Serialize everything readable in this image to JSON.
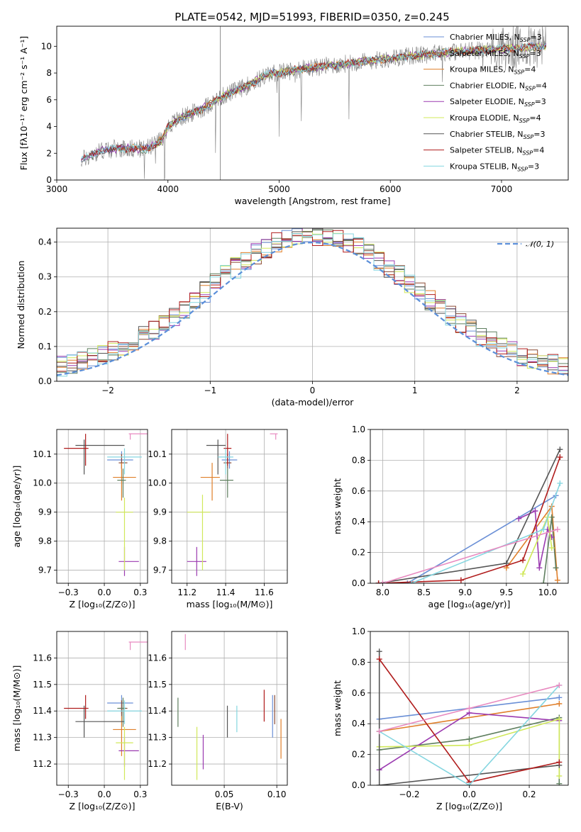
{
  "title": "PLATE=0542, MJD=51993, FIBERID=0350, z=0.245",
  "models": [
    {
      "label": "Chabrier MILES, N",
      "nssp": "=3",
      "color": "#6a8fd6"
    },
    {
      "label": "Salpeter MILES, N",
      "nssp": "=3",
      "color": "#8a4a34"
    },
    {
      "label": "Kroupa MILES, N",
      "nssp": "=4",
      "color": "#e07f2a"
    },
    {
      "label": "Chabrier ELODIE, N",
      "nssp": "=4",
      "color": "#5f7f5f"
    },
    {
      "label": "Salpeter ELODIE, N",
      "nssp": "=3",
      "color": "#9b3ab0"
    },
    {
      "label": "Kroupa ELODIE, N",
      "nssp": "=4",
      "color": "#d0e85a"
    },
    {
      "label": "Chabrier STELIB, N",
      "nssp": "=3",
      "color": "#555555"
    },
    {
      "label": "Salpeter STELIB, N",
      "nssp": "=4",
      "color": "#b01c1c"
    },
    {
      "label": "Kroupa STELIB, N",
      "nssp": "=3",
      "color": "#85d6e0"
    }
  ],
  "extra_color": "#e88ac0",
  "chart_data": [
    {
      "id": "spectrum",
      "type": "line",
      "xlabel": "wavelength [Angstrom, rest frame]",
      "ylabel": "Flux [fλ10⁻¹⁷ erg cm⁻² s⁻¹ A⁻¹]",
      "xlim": [
        3000,
        7600
      ],
      "ylim": [
        0,
        11.5
      ],
      "xticks": [
        3000,
        4000,
        5000,
        6000,
        7000
      ],
      "yticks": [
        0,
        2,
        4,
        6,
        8,
        10
      ],
      "continuum": {
        "x": [
          3220,
          3400,
          3600,
          3800,
          3950,
          4000,
          4100,
          4300,
          4500,
          4700,
          4900,
          5200,
          5500,
          5800,
          6200,
          6600,
          7000,
          7400
        ],
        "y": [
          1.5,
          2.2,
          2.4,
          2.3,
          3.0,
          4.0,
          4.6,
          5.3,
          6.3,
          7.0,
          7.9,
          8.3,
          8.6,
          8.9,
          9.3,
          9.6,
          9.8,
          10.0
        ]
      }
    },
    {
      "id": "residuals",
      "type": "histogram",
      "xlabel": "(data-model)/error",
      "ylabel": "Normed distribution",
      "xlim": [
        -2.5,
        2.5
      ],
      "ylim": [
        0,
        0.44
      ],
      "xticks": [
        -2,
        -1,
        0,
        1,
        2
      ],
      "yticks": [
        0.0,
        0.1,
        0.2,
        0.3,
        0.4
      ],
      "reference_label": "𝒩(0, 1)",
      "bin_width": 0.1
    },
    {
      "id": "age_vs_Z",
      "type": "errorbar",
      "xlabel": "Z [log₁₀(Z/Z⊙)]",
      "ylabel": "age  [log₁₀(age/yr)]",
      "xlim": [
        -0.33,
        0.3
      ],
      "ylim": [
        9.655,
        10.185
      ],
      "xticks": [
        -0.25,
        0.0,
        0.25
      ],
      "yticks": [
        9.7,
        9.8,
        9.9,
        10.0,
        10.1
      ],
      "points": [
        {
          "x": 0.12,
          "y": 10.08,
          "xerr": [
            0.1,
            0.08
          ],
          "yerr": [
            0.03,
            0.03
          ],
          "c": 0
        },
        {
          "x": 0.12,
          "y": 10.07,
          "xerr": [
            0.02,
            0.04
          ],
          "yerr": [
            0.02,
            0.03
          ],
          "c": 1
        },
        {
          "x": 0.12,
          "y": 10.02,
          "xerr": [
            0.06,
            0.1
          ],
          "yerr": [
            0.08,
            0.05
          ],
          "c": 2
        },
        {
          "x": 0.13,
          "y": 10.01,
          "xerr": [
            0.04,
            0.02
          ],
          "yerr": [
            0.06,
            0.04
          ],
          "c": 3
        },
        {
          "x": 0.14,
          "y": 9.73,
          "xerr": [
            0.04,
            0.1
          ],
          "yerr": [
            0.05,
            0.05
          ],
          "c": 4
        },
        {
          "x": 0.14,
          "y": 9.9,
          "xerr": [
            0.06,
            0.06
          ],
          "yerr": [
            0.2,
            0.05
          ],
          "c": 5
        },
        {
          "x": -0.14,
          "y": 10.13,
          "xerr": [
            0.06,
            0.28
          ],
          "yerr": [
            0.1,
            0.02
          ],
          "c": 6
        },
        {
          "x": -0.13,
          "y": 10.12,
          "xerr": [
            0.15,
            0.02
          ],
          "yerr": [
            0.06,
            0.05
          ],
          "c": 7
        },
        {
          "x": 0.14,
          "y": 10.09,
          "xerr": [
            0.12,
            0.12
          ],
          "yerr": [
            0.06,
            0.03
          ],
          "c": 8
        },
        {
          "x": 0.18,
          "y": 10.17,
          "xerr": [
            0.01,
            0.12
          ],
          "yerr": [
            0.02,
            0.0
          ],
          "c": 9
        }
      ]
    },
    {
      "id": "age_vs_mass",
      "type": "errorbar",
      "xlabel": "mass [log₁₀(M/M⊙)]",
      "ylabel": "",
      "xlim": [
        11.12,
        11.72
      ],
      "ylim": [
        9.655,
        10.185
      ],
      "xticks": [
        11.2,
        11.4,
        11.6
      ],
      "yticks": [
        9.7,
        9.8,
        9.9,
        10.0,
        10.1
      ],
      "points": [
        {
          "x": 11.42,
          "y": 10.08,
          "xerr": [
            0.04,
            0.04
          ],
          "yerr": [
            0.03,
            0.03
          ],
          "c": 0
        },
        {
          "x": 11.41,
          "y": 10.07,
          "xerr": [
            0.02,
            0.02
          ],
          "yerr": [
            0.02,
            0.03
          ],
          "c": 1
        },
        {
          "x": 11.33,
          "y": 10.02,
          "xerr": [
            0.06,
            0.04
          ],
          "yerr": [
            0.08,
            0.05
          ],
          "c": 2
        },
        {
          "x": 11.41,
          "y": 10.01,
          "xerr": [
            0.04,
            0.03
          ],
          "yerr": [
            0.06,
            0.04
          ],
          "c": 3
        },
        {
          "x": 11.25,
          "y": 9.73,
          "xerr": [
            0.05,
            0.05
          ],
          "yerr": [
            0.05,
            0.05
          ],
          "c": 4
        },
        {
          "x": 11.28,
          "y": 9.9,
          "xerr": [
            0.08,
            0.04
          ],
          "yerr": [
            0.2,
            0.06
          ],
          "c": 5
        },
        {
          "x": 11.36,
          "y": 10.13,
          "xerr": [
            0.06,
            0.04
          ],
          "yerr": [
            0.1,
            0.02
          ],
          "c": 6
        },
        {
          "x": 11.41,
          "y": 10.12,
          "xerr": [
            0.02,
            0.02
          ],
          "yerr": [
            0.06,
            0.05
          ],
          "c": 7
        },
        {
          "x": 11.4,
          "y": 10.09,
          "xerr": [
            0.04,
            0.04
          ],
          "yerr": [
            0.06,
            0.03
          ],
          "c": 8
        },
        {
          "x": 11.66,
          "y": 10.17,
          "xerr": [
            0.03,
            0.01
          ],
          "yerr": [
            0.02,
            0.0
          ],
          "c": 9
        }
      ]
    },
    {
      "id": "weight_vs_age",
      "type": "line",
      "xlabel": "age  [log₁₀(age/yr)]",
      "ylabel": "mass weight",
      "xlim": [
        7.85,
        10.25
      ],
      "ylim": [
        0,
        1.0
      ],
      "xticks": [
        8.0,
        8.5,
        9.0,
        9.5,
        10.0
      ],
      "yticks": [
        0.0,
        0.2,
        0.4,
        0.6,
        0.8,
        1.0
      ],
      "series": [
        {
          "c": 0,
          "x": [
            8.3,
            10.1
          ],
          "y": [
            0.0,
            0.57
          ]
        },
        {
          "c": 2,
          "x": [
            9.5,
            10.05,
            10.12
          ],
          "y": [
            0.1,
            0.5,
            0.02
          ]
        },
        {
          "c": 3,
          "x": [
            9.95,
            10.05,
            10.1
          ],
          "y": [
            0.0,
            0.43,
            0.1
          ]
        },
        {
          "c": 4,
          "x": [
            9.65,
            9.85,
            9.9,
            10.0,
            10.05
          ],
          "y": [
            0.42,
            0.47,
            0.1,
            0.35,
            0.3
          ]
        },
        {
          "c": 5,
          "x": [
            9.7,
            10.0,
            10.05
          ],
          "y": [
            0.06,
            0.43,
            0.23
          ]
        },
        {
          "c": 6,
          "x": [
            7.95,
            9.5,
            10.15
          ],
          "y": [
            0.0,
            0.13,
            0.87
          ]
        },
        {
          "c": 7,
          "x": [
            7.95,
            8.95,
            9.7,
            10.15
          ],
          "y": [
            0.0,
            0.02,
            0.15,
            0.82
          ]
        },
        {
          "c": 8,
          "x": [
            8.35,
            9.95,
            10.15
          ],
          "y": [
            0.0,
            0.35,
            0.65
          ]
        },
        {
          "c": 9,
          "x": [
            8.0,
            10.12
          ],
          "y": [
            0.0,
            0.35
          ]
        }
      ]
    },
    {
      "id": "mass_vs_Z",
      "type": "errorbar",
      "xlabel": "Z [log₁₀(Z/Z⊙)]",
      "ylabel": "mass [log₁₀(M/M⊙)]",
      "xlim": [
        -0.33,
        0.3
      ],
      "ylim": [
        11.12,
        11.7
      ],
      "xticks": [
        -0.25,
        0.0,
        0.25
      ],
      "yticks": [
        11.2,
        11.3,
        11.4,
        11.5,
        11.6
      ],
      "points": [
        {
          "x": 0.12,
          "y": 11.43,
          "xerr": [
            0.1,
            0.08
          ],
          "yerr": [
            0.04,
            0.03
          ],
          "c": 0
        },
        {
          "x": 0.12,
          "y": 11.41,
          "xerr": [
            0.02,
            0.04
          ],
          "yerr": [
            0.03,
            0.03
          ],
          "c": 1
        },
        {
          "x": 0.12,
          "y": 11.33,
          "xerr": [
            0.06,
            0.1
          ],
          "yerr": [
            0.1,
            0.05
          ],
          "c": 2
        },
        {
          "x": 0.13,
          "y": 11.41,
          "xerr": [
            0.04,
            0.02
          ],
          "yerr": [
            0.07,
            0.04
          ],
          "c": 3
        },
        {
          "x": 0.14,
          "y": 11.25,
          "xerr": [
            0.04,
            0.1
          ],
          "yerr": [
            0.06,
            0.05
          ],
          "c": 4
        },
        {
          "x": 0.14,
          "y": 11.28,
          "xerr": [
            0.06,
            0.06
          ],
          "yerr": [
            0.14,
            0.06
          ],
          "c": 5
        },
        {
          "x": -0.14,
          "y": 11.36,
          "xerr": [
            0.06,
            0.28
          ],
          "yerr": [
            0.06,
            0.06
          ],
          "c": 6
        },
        {
          "x": -0.13,
          "y": 11.41,
          "xerr": [
            0.15,
            0.02
          ],
          "yerr": [
            0.04,
            0.05
          ],
          "c": 7
        },
        {
          "x": 0.14,
          "y": 11.4,
          "xerr": [
            0.12,
            0.12
          ],
          "yerr": [
            0.05,
            0.04
          ],
          "c": 8
        },
        {
          "x": 0.18,
          "y": 11.66,
          "xerr": [
            0.01,
            0.12
          ],
          "yerr": [
            0.03,
            0.0
          ],
          "c": 9
        }
      ]
    },
    {
      "id": "mass_vs_ebv",
      "type": "errorbar",
      "xlabel": "E(B-V)",
      "ylabel": "",
      "xlim": [
        0.0,
        0.11
      ],
      "ylim": [
        11.12,
        11.7
      ],
      "xticks": [
        0.05,
        0.1
      ],
      "yticks": [
        11.2,
        11.3,
        11.4,
        11.5,
        11.6
      ],
      "points": [
        {
          "x": 0.096,
          "y": 11.4,
          "yerr": [
            0.1,
            0.06
          ],
          "c": 0
        },
        {
          "x": 0.098,
          "y": 11.41,
          "yerr": [
            0.06,
            0.05
          ],
          "c": 1
        },
        {
          "x": 0.104,
          "y": 11.3,
          "yerr": [
            0.08,
            0.07
          ],
          "c": 2
        },
        {
          "x": 0.006,
          "y": 11.4,
          "yerr": [
            0.06,
            0.05
          ],
          "c": 3
        },
        {
          "x": 0.03,
          "y": 11.24,
          "yerr": [
            0.06,
            0.07
          ],
          "c": 4
        },
        {
          "x": 0.024,
          "y": 11.24,
          "yerr": [
            0.1,
            0.1
          ],
          "c": 5
        },
        {
          "x": 0.053,
          "y": 11.36,
          "yerr": [
            0.06,
            0.06
          ],
          "c": 6
        },
        {
          "x": 0.088,
          "y": 11.41,
          "yerr": [
            0.05,
            0.07
          ],
          "c": 7
        },
        {
          "x": 0.062,
          "y": 11.37,
          "yerr": [
            0.05,
            0.05
          ],
          "c": 8
        },
        {
          "x": 0.013,
          "y": 11.66,
          "yerr": [
            0.03,
            0.03
          ],
          "c": 9
        }
      ]
    },
    {
      "id": "weight_vs_Z",
      "type": "line",
      "xlabel": "Z [log₁₀(Z/Z⊙)]",
      "ylabel": "mass weight",
      "xlim": [
        -0.33,
        0.33
      ],
      "ylim": [
        0,
        1.0
      ],
      "xticks": [
        -0.2,
        0.0,
        0.2
      ],
      "yticks": [
        0.0,
        0.2,
        0.4,
        0.6,
        0.8,
        1.0
      ],
      "series": [
        {
          "c": 0,
          "x": [
            -0.3,
            0.3
          ],
          "y": [
            0.43,
            0.57
          ]
        },
        {
          "c": 2,
          "x": [
            -0.3,
            0.3
          ],
          "y": [
            0.35,
            0.53
          ]
        },
        {
          "c": 3,
          "x": [
            -0.3,
            0.0,
            0.3,
            0.3
          ],
          "y": [
            0.23,
            0.3,
            0.44,
            0.01
          ]
        },
        {
          "c": 4,
          "x": [
            -0.3,
            0.0,
            0.3
          ],
          "y": [
            0.1,
            0.47,
            0.42
          ]
        },
        {
          "c": 5,
          "x": [
            -0.3,
            0.0,
            0.3,
            0.3
          ],
          "y": [
            0.25,
            0.26,
            0.43,
            0.06
          ]
        },
        {
          "c": 6,
          "x": [
            -0.3,
            -0.3,
            0.3
          ],
          "y": [
            0.87,
            0.0,
            0.13
          ]
        },
        {
          "c": 7,
          "x": [
            -0.3,
            0.0,
            0.3
          ],
          "y": [
            0.82,
            0.02,
            0.15
          ]
        },
        {
          "c": 8,
          "x": [
            -0.3,
            0.0,
            0.3
          ],
          "y": [
            0.35,
            0.0,
            0.65
          ]
        },
        {
          "c": 9,
          "x": [
            -0.3,
            0.0,
            0.3
          ],
          "y": [
            0.35,
            0.5,
            0.65
          ]
        }
      ]
    }
  ]
}
